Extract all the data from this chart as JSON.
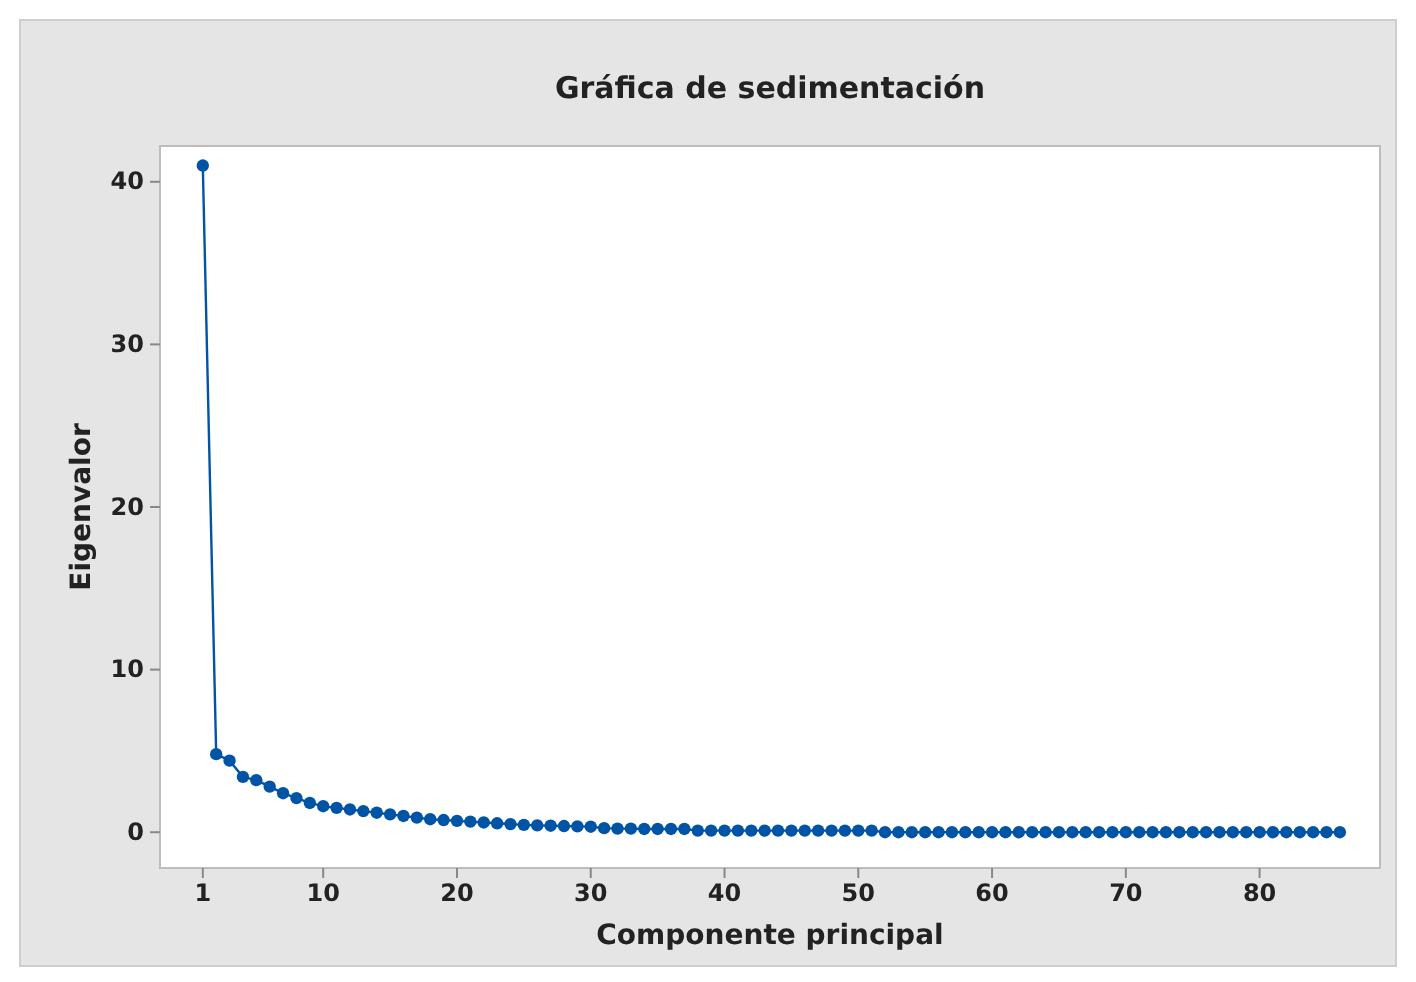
{
  "chart_data": {
    "type": "line",
    "title": "Gráfica de sedimentación",
    "xlabel": "Componente principal",
    "ylabel": "Eigenvalor",
    "marker": "circle",
    "xlim": [
      -2.2,
      89
    ],
    "ylim": [
      -2.2,
      42.2
    ],
    "xticks": [
      1,
      10,
      20,
      30,
      40,
      50,
      60,
      70,
      80
    ],
    "yticks": [
      0,
      10,
      20,
      30,
      40
    ],
    "x": [
      1,
      2,
      3,
      4,
      5,
      6,
      7,
      8,
      9,
      10,
      11,
      12,
      13,
      14,
      15,
      16,
      17,
      18,
      19,
      20,
      21,
      22,
      23,
      24,
      25,
      26,
      27,
      28,
      29,
      30,
      31,
      32,
      33,
      34,
      35,
      36,
      37,
      38,
      39,
      40,
      41,
      42,
      43,
      44,
      45,
      46,
      47,
      48,
      49,
      50,
      51,
      52,
      53,
      54,
      55,
      56,
      57,
      58,
      59,
      60,
      61,
      62,
      63,
      64,
      65,
      66,
      67,
      68,
      69,
      70,
      71,
      72,
      73,
      74,
      75,
      76,
      77,
      78,
      79,
      80,
      81,
      82,
      83,
      84,
      85,
      86
    ],
    "series": [
      {
        "color": "#0054a6",
        "values": [
          41,
          4.8,
          4.4,
          3.4,
          3.2,
          2.8,
          2.4,
          2.1,
          1.8,
          1.6,
          1.5,
          1.4,
          1.3,
          1.2,
          1.1,
          1,
          0.9,
          0.8,
          0.75,
          0.7,
          0.65,
          0.6,
          0.55,
          0.5,
          0.45,
          0.42,
          0.4,
          0.38,
          0.36,
          0.34,
          0.25,
          0.22,
          0.22,
          0.2,
          0.2,
          0.2,
          0.2,
          0.1,
          0.1,
          0.1,
          0.1,
          0.1,
          0.1,
          0.1,
          0.1,
          0.1,
          0.1,
          0.1,
          0.1,
          0.1,
          0.1,
          0,
          0,
          0,
          0,
          0,
          0,
          0,
          0,
          0,
          0,
          0,
          0,
          0,
          0,
          0,
          0,
          0,
          0,
          0,
          0,
          0,
          0,
          0,
          0,
          0,
          0,
          0,
          0,
          0,
          0,
          0,
          0,
          0,
          0,
          0
        ]
      }
    ]
  }
}
